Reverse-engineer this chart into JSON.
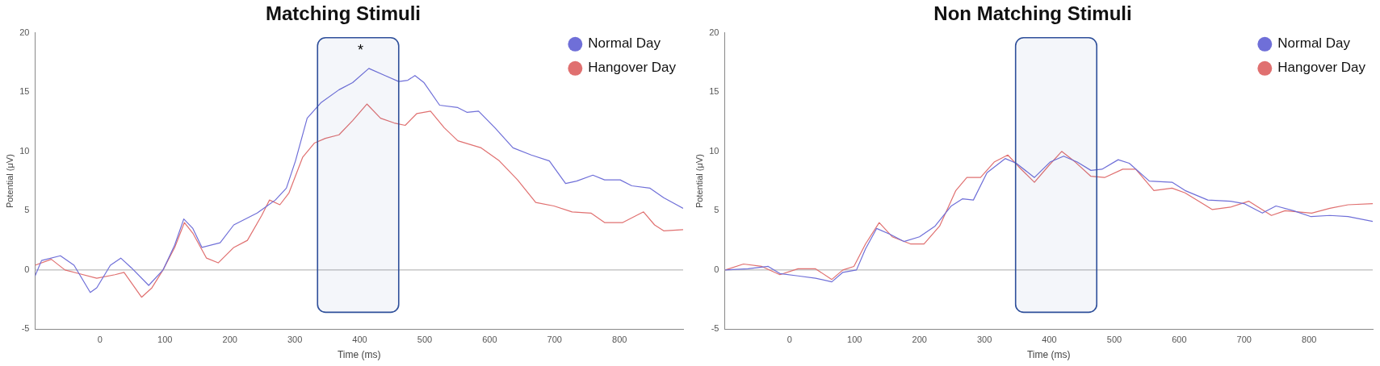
{
  "chart_data": [
    {
      "type": "line",
      "title": "Matching Stimuli",
      "xlabel": "Time (ms)",
      "ylabel": "Potential (μV)",
      "xlim": [
        -100,
        898
      ],
      "xticks": [
        0,
        100,
        200,
        300,
        400,
        500,
        600,
        700,
        800
      ],
      "ylim": [
        -5,
        20
      ],
      "yticks": [
        -5,
        0,
        5,
        10,
        15,
        20
      ],
      "grid": false,
      "legend": "top right",
      "marker": "none",
      "line_style": "solid",
      "ref_lines": [
        {
          "axis": "y",
          "value": 0,
          "color": "#aaaaaa"
        }
      ],
      "bands": [
        {
          "axis": "x",
          "from": 335,
          "to": 460,
          "color": "#2e4f9a"
        }
      ],
      "annotations": [
        "*"
      ],
      "series": [
        {
          "name": "Normal Day",
          "color": "#6f6fd8",
          "x": [
            -100,
            -90,
            -61,
            -40,
            -15,
            -5,
            16,
            32,
            48,
            75,
            97,
            115,
            129,
            143,
            157,
            185,
            206,
            242,
            270,
            287,
            301,
            319,
            340,
            368,
            389,
            414,
            439,
            460,
            474,
            485,
            499,
            523,
            551,
            565,
            583,
            608,
            636,
            664,
            692,
            717,
            734,
            759,
            777,
            801,
            819,
            847,
            868,
            898
          ],
          "values": [
            -0.5,
            0.8,
            1.2,
            0.4,
            -1.9,
            -1.5,
            0.4,
            1.0,
            0.2,
            -1.3,
            0,
            2.1,
            4.3,
            3.5,
            1.9,
            2.3,
            3.8,
            4.8,
            5.9,
            6.9,
            9.2,
            12.8,
            14.1,
            15.2,
            15.8,
            17.0,
            16.4,
            15.9,
            16.0,
            16.4,
            15.8,
            13.9,
            13.7,
            13.3,
            13.4,
            12.0,
            10.3,
            9.7,
            9.2,
            7.3,
            7.5,
            8.0,
            7.6,
            7.6,
            7.1,
            6.9,
            6.1,
            5.2
          ]
        },
        {
          "name": "Hangover Day",
          "color": "#e07070",
          "x": [
            -100,
            -75,
            -54,
            -33,
            -5,
            23,
            37,
            64,
            80,
            97,
            115,
            130,
            143,
            164,
            182,
            206,
            227,
            249,
            261,
            277,
            291,
            312,
            330,
            347,
            368,
            389,
            411,
            432,
            453,
            470,
            488,
            509,
            530,
            551,
            587,
            615,
            643,
            671,
            699,
            727,
            756,
            777,
            805,
            837,
            854,
            868,
            898
          ],
          "values": [
            0.4,
            0.9,
            0,
            -0.3,
            -0.7,
            -0.4,
            -0.2,
            -2.3,
            -1.5,
            0,
            1.9,
            4.0,
            3.1,
            1.0,
            0.6,
            1.9,
            2.5,
            4.6,
            5.9,
            5.5,
            6.5,
            9.5,
            10.7,
            11.1,
            11.4,
            12.6,
            14.0,
            12.8,
            12.4,
            12.2,
            13.2,
            13.4,
            12.0,
            10.9,
            10.3,
            9.2,
            7.6,
            5.7,
            5.4,
            4.9,
            4.8,
            4.0,
            4.0,
            4.9,
            3.8,
            3.3,
            3.4
          ]
        }
      ]
    },
    {
      "type": "line",
      "title": "Non Matching Stimuli",
      "xlabel": "Time (ms)",
      "ylabel": "Potential (μV)",
      "xlim": [
        -100,
        898
      ],
      "xticks": [
        0,
        100,
        200,
        300,
        400,
        500,
        600,
        700,
        800
      ],
      "ylim": [
        -5,
        20
      ],
      "yticks": [
        -5,
        0,
        5,
        10,
        15,
        20
      ],
      "grid": false,
      "legend": "top right",
      "marker": "none",
      "line_style": "solid",
      "ref_lines": [
        {
          "axis": "y",
          "value": 0,
          "color": "#aaaaaa"
        }
      ],
      "bands": [
        {
          "axis": "x",
          "from": 348,
          "to": 473,
          "color": "#2e4f9a"
        }
      ],
      "series": [
        {
          "name": "Normal Day",
          "color": "#6f6fd8",
          "x": [
            -99,
            -64,
            -33,
            -15,
            13,
            40,
            65,
            82,
            103,
            117,
            134,
            155,
            176,
            200,
            224,
            249,
            266,
            283,
            304,
            332,
            349,
            377,
            401,
            422,
            443,
            464,
            481,
            506,
            523,
            554,
            589,
            609,
            644,
            679,
            700,
            728,
            749,
            776,
            803,
            832,
            860,
            898
          ],
          "values": [
            0,
            0.1,
            0.3,
            -0.3,
            -0.5,
            -0.7,
            -1.0,
            -0.2,
            0,
            1.8,
            3.5,
            3.0,
            2.4,
            2.8,
            3.7,
            5.4,
            6.0,
            5.9,
            8.2,
            9.4,
            9.0,
            7.8,
            9.1,
            9.6,
            9.1,
            8.4,
            8.5,
            9.3,
            9.0,
            7.5,
            7.4,
            6.7,
            5.9,
            5.8,
            5.6,
            4.8,
            5.4,
            5.0,
            4.5,
            4.6,
            4.5,
            4.1
          ]
        },
        {
          "name": "Hangover Day",
          "color": "#e07070",
          "x": [
            -99,
            -71,
            -43,
            -15,
            13,
            40,
            65,
            82,
            99,
            117,
            138,
            158,
            186,
            207,
            231,
            256,
            273,
            294,
            315,
            336,
            353,
            377,
            399,
            419,
            440,
            464,
            485,
            513,
            533,
            561,
            589,
            609,
            651,
            679,
            707,
            742,
            763,
            804,
            832,
            860,
            898
          ],
          "values": [
            0,
            0.5,
            0.3,
            -0.4,
            0.1,
            0.1,
            -0.8,
            0,
            0.3,
            2.2,
            4.0,
            2.8,
            2.2,
            2.2,
            3.7,
            6.7,
            7.8,
            7.8,
            9.1,
            9.7,
            8.7,
            7.4,
            8.8,
            10.0,
            9.1,
            7.9,
            7.8,
            8.5,
            8.5,
            6.7,
            6.9,
            6.5,
            5.1,
            5.3,
            5.8,
            4.6,
            5.0,
            4.8,
            5.2,
            5.5,
            5.6
          ]
        }
      ]
    }
  ]
}
